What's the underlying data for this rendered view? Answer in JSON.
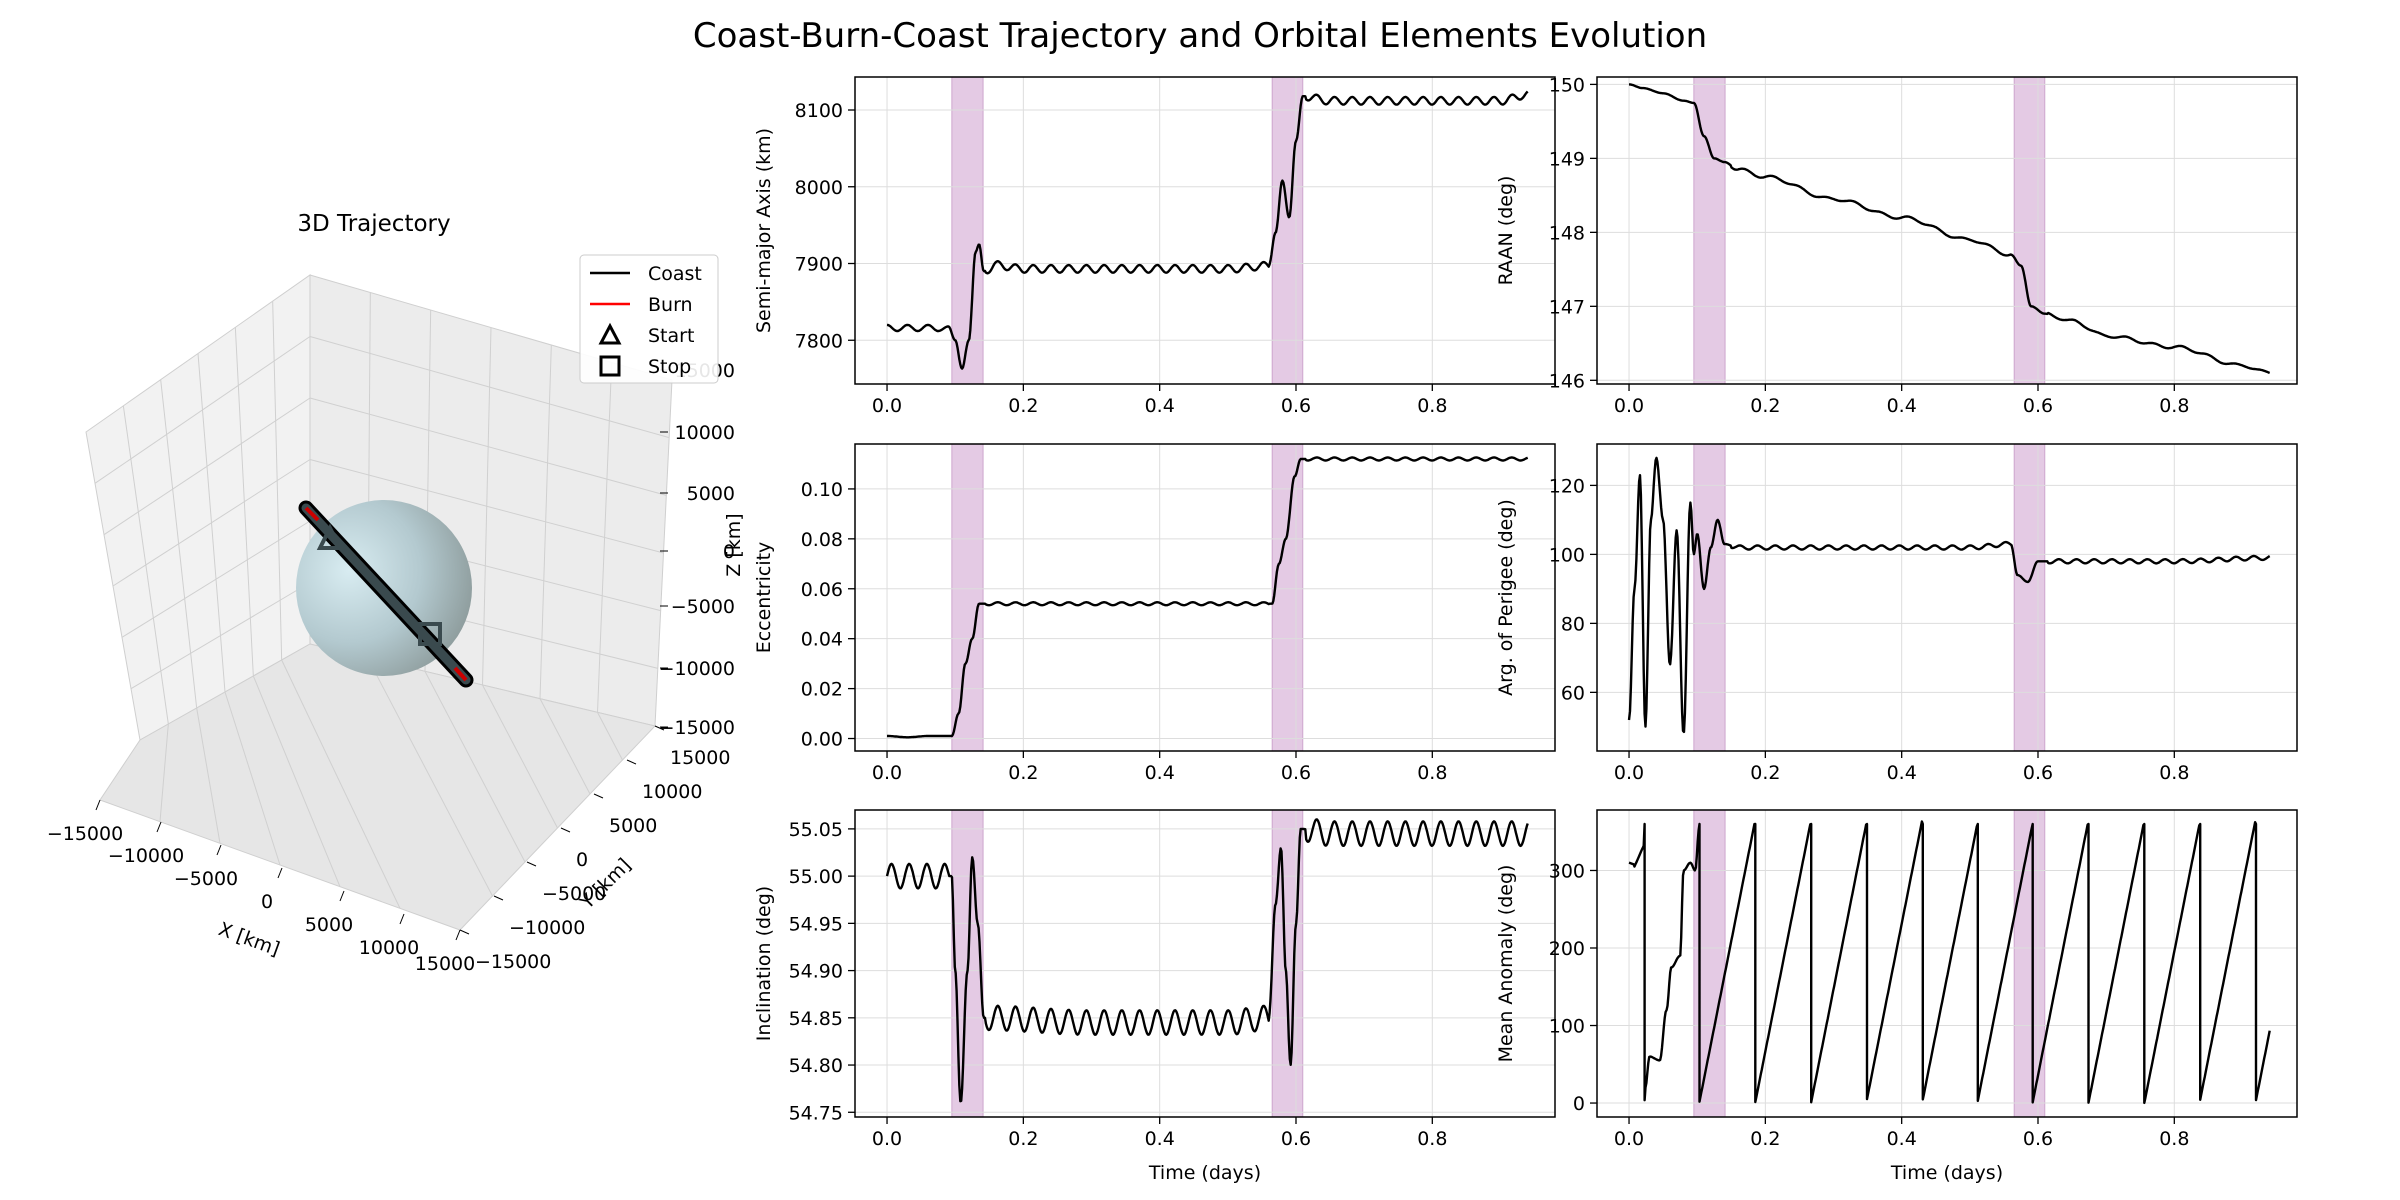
{
  "suptitle": "Coast-Burn-Coast Trajectory and Orbital Elements Evolution",
  "colors": {
    "coast": "#000000",
    "burn": "#ff0000",
    "burn_span": "#c996c9",
    "earth": "#b9d3dc",
    "grid": "#dddddd"
  },
  "three_d": {
    "title": "3D Trajectory",
    "xlabel": "X [km]",
    "ylabel": "Y [km]",
    "zlabel": "Z [km]",
    "xticks": [
      "−15000",
      "−10000",
      "−5000",
      "0",
      "5000",
      "10000",
      "15000"
    ],
    "yticks": [
      "−15000",
      "−10000",
      "−5000",
      "0",
      "5000",
      "10000",
      "15000"
    ],
    "zticks": [
      "−15000",
      "−10000",
      "−5000",
      "0",
      "5000",
      "10000",
      "15000"
    ],
    "legend": [
      {
        "label": "Coast",
        "marker": "line",
        "color": "#000000"
      },
      {
        "label": "Burn",
        "marker": "line",
        "color": "#ff0000"
      },
      {
        "label": "Start",
        "marker": "triangle",
        "color": "#000000"
      },
      {
        "label": "Stop",
        "marker": "square",
        "color": "#000000"
      }
    ]
  },
  "chart_data": [
    {
      "type": "line",
      "id": "sma",
      "xlabel": "",
      "ylabel": "Semi-major Axis (km)",
      "xlim": [
        -0.047,
        0.98
      ],
      "ylim": [
        7743,
        8143
      ],
      "xticks": [
        0.0,
        0.2,
        0.4,
        0.6,
        0.8
      ],
      "yticks": [
        7800,
        7900,
        8000,
        8100
      ],
      "burn_spans": [
        [
          0.095,
          0.141
        ],
        [
          0.565,
          0.61
        ]
      ],
      "keypoints": [
        [
          0.0,
          7820
        ],
        [
          0.015,
          7812
        ],
        [
          0.03,
          7820
        ],
        [
          0.045,
          7812
        ],
        [
          0.06,
          7820
        ],
        [
          0.075,
          7812
        ],
        [
          0.09,
          7818
        ],
        [
          0.1,
          7800
        ],
        [
          0.11,
          7763
        ],
        [
          0.12,
          7800
        ],
        [
          0.13,
          7915
        ],
        [
          0.135,
          7925
        ],
        [
          0.142,
          7890
        ],
        [
          0.16,
          7898
        ],
        [
          0.2,
          7893
        ],
        [
          0.3,
          7893
        ],
        [
          0.4,
          7893
        ],
        [
          0.5,
          7893
        ],
        [
          0.56,
          7897
        ],
        [
          0.57,
          7940
        ],
        [
          0.58,
          8008
        ],
        [
          0.59,
          7960
        ],
        [
          0.6,
          8060
        ],
        [
          0.61,
          8118
        ],
        [
          0.65,
          8112
        ],
        [
          0.7,
          8112
        ],
        [
          0.8,
          8112
        ],
        [
          0.9,
          8112
        ],
        [
          0.94,
          8120
        ]
      ],
      "ripple": {
        "amplitude": 5,
        "period": 0.026,
        "from": 0.145
      }
    },
    {
      "type": "line",
      "id": "raan",
      "xlabel": "",
      "ylabel": "RAAN (deg)",
      "xlim": [
        -0.047,
        0.98
      ],
      "ylim": [
        145.95,
        150.1
      ],
      "xticks": [
        0.0,
        0.2,
        0.4,
        0.6,
        0.8
      ],
      "yticks": [
        146,
        147,
        148,
        149,
        150
      ],
      "burn_spans": [
        [
          0.095,
          0.141
        ],
        [
          0.565,
          0.61
        ]
      ],
      "keypoints": [
        [
          0.0,
          150.0
        ],
        [
          0.02,
          149.95
        ],
        [
          0.05,
          149.88
        ],
        [
          0.08,
          149.78
        ],
        [
          0.095,
          149.75
        ],
        [
          0.11,
          149.3
        ],
        [
          0.125,
          149.0
        ],
        [
          0.14,
          148.95
        ],
        [
          0.16,
          148.85
        ],
        [
          0.2,
          148.75
        ],
        [
          0.3,
          148.45
        ],
        [
          0.4,
          148.2
        ],
        [
          0.5,
          147.9
        ],
        [
          0.56,
          147.7
        ],
        [
          0.575,
          147.55
        ],
        [
          0.59,
          147.0
        ],
        [
          0.61,
          146.9
        ],
        [
          0.65,
          146.8
        ],
        [
          0.7,
          146.6
        ],
        [
          0.8,
          146.45
        ],
        [
          0.9,
          146.2
        ],
        [
          0.94,
          146.1
        ]
      ],
      "ripple": {
        "amplitude": 0.02,
        "period": 0.04,
        "from": 0.15
      }
    },
    {
      "type": "line",
      "id": "ecc",
      "xlabel": "",
      "ylabel": "Eccentricity",
      "xlim": [
        -0.047,
        0.98
      ],
      "ylim": [
        -0.005,
        0.118
      ],
      "xticks": [
        0.0,
        0.2,
        0.4,
        0.6,
        0.8
      ],
      "yticks": [
        0.0,
        0.02,
        0.04,
        0.06,
        0.08,
        0.1
      ],
      "yticklabels": [
        "0.00",
        "0.02",
        "0.04",
        "0.06",
        "0.08",
        "0.10"
      ],
      "burn_spans": [
        [
          0.095,
          0.141
        ],
        [
          0.565,
          0.61
        ]
      ],
      "keypoints": [
        [
          0.0,
          0.001
        ],
        [
          0.03,
          0.0005
        ],
        [
          0.06,
          0.001
        ],
        [
          0.095,
          0.001
        ],
        [
          0.105,
          0.01
        ],
        [
          0.115,
          0.03
        ],
        [
          0.125,
          0.04
        ],
        [
          0.135,
          0.054
        ],
        [
          0.15,
          0.054
        ],
        [
          0.3,
          0.054
        ],
        [
          0.4,
          0.054
        ],
        [
          0.5,
          0.054
        ],
        [
          0.565,
          0.054
        ],
        [
          0.575,
          0.07
        ],
        [
          0.585,
          0.08
        ],
        [
          0.598,
          0.105
        ],
        [
          0.607,
          0.112
        ],
        [
          0.65,
          0.112
        ],
        [
          0.7,
          0.112
        ],
        [
          0.8,
          0.112
        ],
        [
          0.9,
          0.112
        ],
        [
          0.94,
          0.112
        ]
      ],
      "ripple": {
        "amplitude": 0.0006,
        "period": 0.026,
        "from": 0.14
      }
    },
    {
      "type": "line",
      "id": "argp",
      "xlabel": "",
      "ylabel": "Arg. of Perigee (deg)",
      "xlim": [
        -0.047,
        0.98
      ],
      "ylim": [
        43,
        132
      ],
      "xticks": [
        0.0,
        0.2,
        0.4,
        0.6,
        0.8
      ],
      "yticks": [
        60,
        80,
        100,
        120
      ],
      "burn_spans": [
        [
          0.095,
          0.141
        ],
        [
          0.565,
          0.61
        ]
      ],
      "keypoints": [
        [
          0.0,
          52
        ],
        [
          0.008,
          90
        ],
        [
          0.016,
          123
        ],
        [
          0.024,
          50
        ],
        [
          0.032,
          110
        ],
        [
          0.04,
          128
        ],
        [
          0.05,
          110
        ],
        [
          0.06,
          68
        ],
        [
          0.07,
          107
        ],
        [
          0.08,
          48
        ],
        [
          0.09,
          115
        ],
        [
          0.095,
          100
        ],
        [
          0.1,
          106
        ],
        [
          0.11,
          90
        ],
        [
          0.12,
          102
        ],
        [
          0.13,
          110
        ],
        [
          0.14,
          103
        ],
        [
          0.16,
          102
        ],
        [
          0.3,
          102
        ],
        [
          0.4,
          102
        ],
        [
          0.5,
          102
        ],
        [
          0.56,
          103
        ],
        [
          0.57,
          94
        ],
        [
          0.585,
          92
        ],
        [
          0.6,
          98
        ],
        [
          0.65,
          98
        ],
        [
          0.8,
          98
        ],
        [
          0.94,
          99
        ]
      ],
      "ripple": {
        "amplitude": 0.6,
        "period": 0.026,
        "from": 0.15
      }
    },
    {
      "type": "line",
      "id": "inc",
      "xlabel": "Time (days)",
      "ylabel": "Inclination (deg)",
      "xlim": [
        -0.047,
        0.98
      ],
      "ylim": [
        54.745,
        55.07
      ],
      "xticks": [
        0.0,
        0.2,
        0.4,
        0.6,
        0.8
      ],
      "yticks": [
        54.75,
        54.8,
        54.85,
        54.9,
        54.95,
        55.0,
        55.05
      ],
      "yticklabels": [
        "54.75",
        "54.80",
        "54.85",
        "54.90",
        "54.95",
        "55.00",
        "55.05"
      ],
      "burn_spans": [
        [
          0.095,
          0.141
        ],
        [
          0.565,
          0.61
        ]
      ],
      "keypoints": [
        [
          0.0,
          55.0
        ],
        [
          0.095,
          55.0
        ],
        [
          0.1,
          54.9
        ],
        [
          0.108,
          54.76
        ],
        [
          0.118,
          54.9
        ],
        [
          0.125,
          55.02
        ],
        [
          0.133,
          54.95
        ],
        [
          0.142,
          54.85
        ],
        [
          0.3,
          54.845
        ],
        [
          0.5,
          54.845
        ],
        [
          0.56,
          54.85
        ],
        [
          0.57,
          54.97
        ],
        [
          0.578,
          55.03
        ],
        [
          0.585,
          54.9
        ],
        [
          0.592,
          54.8
        ],
        [
          0.6,
          54.95
        ],
        [
          0.607,
          55.05
        ],
        [
          0.65,
          55.045
        ],
        [
          0.8,
          55.045
        ],
        [
          0.94,
          55.045
        ]
      ],
      "ripple": {
        "amplitude": 0.013,
        "period": 0.026,
        "from": 0.0
      }
    },
    {
      "type": "line",
      "id": "ma",
      "xlabel": "Time (days)",
      "ylabel": "Mean Anomaly (deg)",
      "xlim": [
        -0.047,
        0.98
      ],
      "ylim": [
        -18,
        378
      ],
      "xticks": [
        0.0,
        0.2,
        0.4,
        0.6,
        0.8
      ],
      "yticks": [
        0,
        100,
        200,
        300
      ],
      "burn_spans": [
        [
          0.095,
          0.141
        ],
        [
          0.565,
          0.61
        ]
      ],
      "sawtooth": {
        "wrap_times": [
          0.022,
          0.103,
          0.185,
          0.267,
          0.348,
          0.43,
          0.511,
          0.592,
          0.674,
          0.756,
          0.837,
          0.919
        ]
      }
    }
  ]
}
